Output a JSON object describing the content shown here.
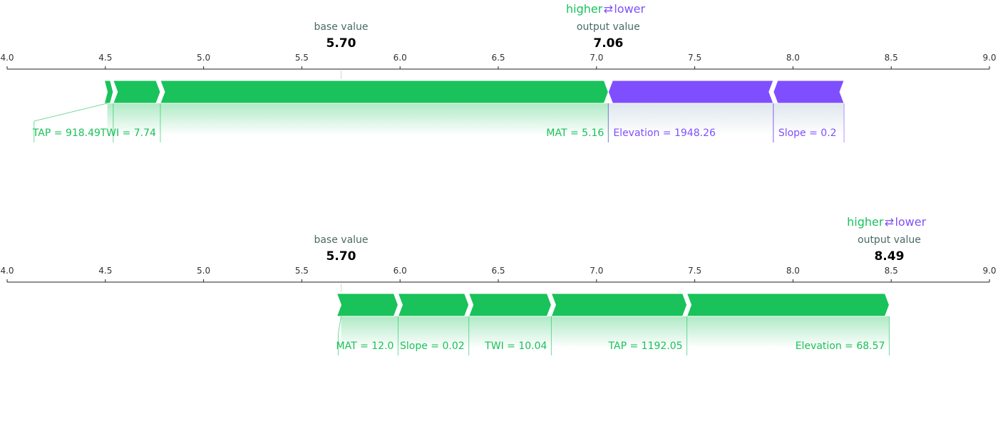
{
  "colors": {
    "positive": "#19c25a",
    "negative": "#7f4fff",
    "axis": "#222222",
    "caption": "#4a6a66",
    "value": "#000000"
  },
  "labels": {
    "higher": "higher",
    "lower": "lower",
    "arrow": "⇄",
    "base_value": "base value",
    "output_value": "output value"
  },
  "chart_data": [
    {
      "type": "bar",
      "subtype": "shap-force-plot",
      "xlim": [
        4.0,
        9.0
      ],
      "ticks": [
        "4.0",
        "4.5",
        "5.0",
        "5.5",
        "6.0",
        "6.5",
        "7.0",
        "7.5",
        "8.0",
        "8.5",
        "9.0"
      ],
      "base_value": 5.7,
      "base_value_text": "5.70",
      "output_value": 7.06,
      "output_value_text": "7.06",
      "positive": [
        {
          "label": "TAP = 918.49",
          "start": 4.51,
          "end": 4.54
        },
        {
          "label": "TWI = 7.74",
          "start": 4.54,
          "end": 4.78
        },
        {
          "label": "MAT = 5.16",
          "start": 4.78,
          "end": 7.06
        }
      ],
      "negative": [
        {
          "label": "Elevation = 1948.26",
          "start": 7.06,
          "end": 7.9
        },
        {
          "label": "Slope = 0.2",
          "start": 7.9,
          "end": 8.26
        }
      ]
    },
    {
      "type": "bar",
      "subtype": "shap-force-plot",
      "xlim": [
        4.0,
        9.0
      ],
      "ticks": [
        "4.0",
        "4.5",
        "5.0",
        "5.5",
        "6.0",
        "6.5",
        "7.0",
        "7.5",
        "8.0",
        "8.5",
        "9.0"
      ],
      "base_value": 5.7,
      "base_value_text": "5.70",
      "output_value": 8.49,
      "output_value_text": "8.49",
      "positive": [
        {
          "label": "MAT = 12.0",
          "start": 5.7,
          "end": 5.99
        },
        {
          "label": "Slope = 0.02",
          "start": 5.99,
          "end": 6.35
        },
        {
          "label": "TWI = 10.04",
          "start": 6.35,
          "end": 6.77
        },
        {
          "label": "TAP = 1192.05",
          "start": 6.77,
          "end": 7.46
        },
        {
          "label": "Elevation = 68.57",
          "start": 7.46,
          "end": 8.49
        }
      ],
      "negative": []
    }
  ]
}
